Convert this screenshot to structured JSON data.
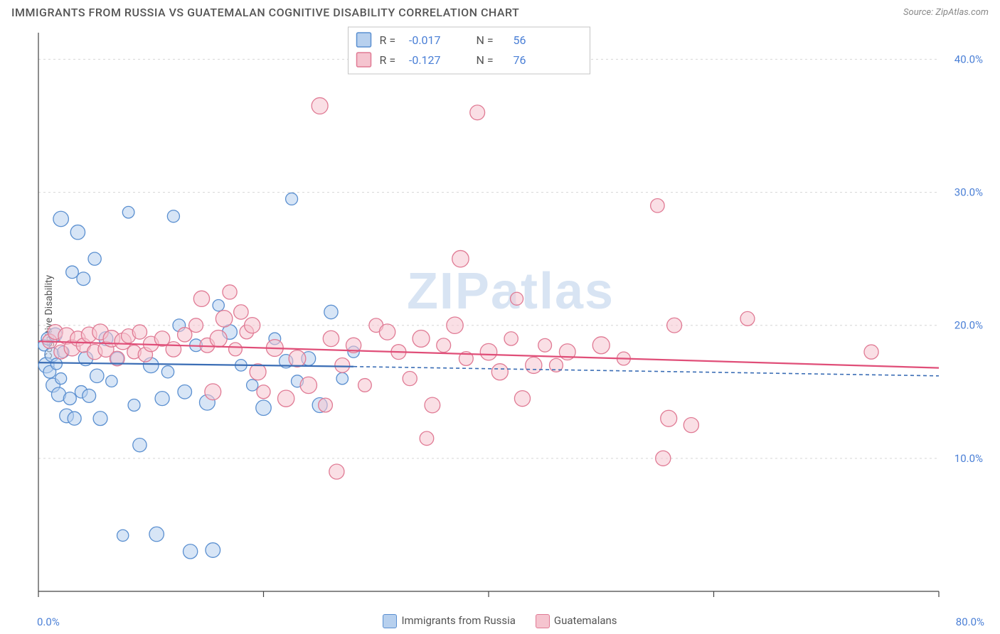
{
  "header": {
    "title": "IMMIGRANTS FROM RUSSIA VS GUATEMALAN COGNITIVE DISABILITY CORRELATION CHART",
    "source": "Source: ZipAtlas.com"
  },
  "chart": {
    "type": "scatter",
    "y_axis_label": "Cognitive Disability",
    "watermark_text": "ZIPatlas",
    "watermark_color": "#d8e4f3",
    "background_color": "#ffffff",
    "grid_color": "#d5d5d5",
    "axis_color": "#444444",
    "y_ticks": [
      10.0,
      20.0,
      30.0,
      40.0
    ],
    "y_tick_labels": [
      "10.0%",
      "20.0%",
      "30.0%",
      "40.0%"
    ],
    "ylim": [
      0,
      42
    ],
    "xlim": [
      0,
      80
    ],
    "x_tick_positions": [
      0,
      20,
      40,
      60,
      80
    ],
    "x_start_label": "0.0%",
    "x_end_label": "80.0%",
    "y_tick_color": "#4a7fd6",
    "y_tick_fontsize": 15,
    "stats_box": {
      "border_color": "#c4c4c4",
      "bg_color": "#ffffff",
      "rows": [
        {
          "swatch_fill": "#b7d0ee",
          "swatch_stroke": "#5a8fd0",
          "r_label": "R =",
          "r_value": "-0.017",
          "n_label": "N =",
          "n_value": "56",
          "value_color": "#4a7fd6"
        },
        {
          "swatch_fill": "#f5c4cf",
          "swatch_stroke": "#e07a94",
          "r_label": "R =",
          "r_value": "-0.127",
          "n_label": "N =",
          "n_value": "76",
          "value_color": "#4a7fd6"
        }
      ]
    },
    "series": [
      {
        "name": "Immigrants from Russia",
        "fill_color": "#b7d0ee",
        "fill_opacity": 0.55,
        "stroke_color": "#5a8fd0",
        "stroke_width": 1.3,
        "marker_radius_base": 8,
        "trend": {
          "x1": 0,
          "y1": 17.2,
          "x2": 28,
          "y2": 16.9,
          "x2_dash": 80,
          "y2_dash": 16.2,
          "color": "#3a6db5",
          "width": 2.2,
          "dash": "5,4"
        },
        "points": [
          [
            0.5,
            18.5
          ],
          [
            0.7,
            17.0
          ],
          [
            0.8,
            19.0
          ],
          [
            1.0,
            16.5
          ],
          [
            1.2,
            17.8
          ],
          [
            1.3,
            15.5
          ],
          [
            1.5,
            19.3
          ],
          [
            1.6,
            17.1
          ],
          [
            1.8,
            14.8
          ],
          [
            2.0,
            16.0
          ],
          [
            2.0,
            28.0
          ],
          [
            2.2,
            18.0
          ],
          [
            2.5,
            13.2
          ],
          [
            2.8,
            14.5
          ],
          [
            3.0,
            24.0
          ],
          [
            3.2,
            13.0
          ],
          [
            3.5,
            27.0
          ],
          [
            3.8,
            15.0
          ],
          [
            4.0,
            23.5
          ],
          [
            4.2,
            17.5
          ],
          [
            4.5,
            14.7
          ],
          [
            5.0,
            25.0
          ],
          [
            5.2,
            16.2
          ],
          [
            5.5,
            13.0
          ],
          [
            6.0,
            19.0
          ],
          [
            6.5,
            15.8
          ],
          [
            7.0,
            17.5
          ],
          [
            7.5,
            4.2
          ],
          [
            8.0,
            28.5
          ],
          [
            8.5,
            14.0
          ],
          [
            9.0,
            11.0
          ],
          [
            10.0,
            17.0
          ],
          [
            10.5,
            4.3
          ],
          [
            11.0,
            14.5
          ],
          [
            11.5,
            16.5
          ],
          [
            12.0,
            28.2
          ],
          [
            13.0,
            15.0
          ],
          [
            13.5,
            3.0
          ],
          [
            14.0,
            18.5
          ],
          [
            15.0,
            14.2
          ],
          [
            15.5,
            3.1
          ],
          [
            16.0,
            21.5
          ],
          [
            17.0,
            19.5
          ],
          [
            18.0,
            17.0
          ],
          [
            19.0,
            15.5
          ],
          [
            20.0,
            13.8
          ],
          [
            21.0,
            19.0
          ],
          [
            22.0,
            17.3
          ],
          [
            22.5,
            29.5
          ],
          [
            23.0,
            15.8
          ],
          [
            24.0,
            17.5
          ],
          [
            25.0,
            14.0
          ],
          [
            26.0,
            21.0
          ],
          [
            27.0,
            16.0
          ],
          [
            28.0,
            18.0
          ],
          [
            12.5,
            20.0
          ]
        ]
      },
      {
        "name": "Guatemalans",
        "fill_color": "#f5c4cf",
        "fill_opacity": 0.55,
        "stroke_color": "#e07a94",
        "stroke_width": 1.3,
        "marker_radius_base": 9,
        "trend": {
          "x1": 0,
          "y1": 18.8,
          "x2": 80,
          "y2": 16.8,
          "color": "#e04e78",
          "width": 2.2
        },
        "points": [
          [
            1.0,
            18.8
          ],
          [
            1.5,
            19.5
          ],
          [
            2.0,
            18.0
          ],
          [
            2.5,
            19.2
          ],
          [
            3.0,
            18.3
          ],
          [
            3.5,
            19.0
          ],
          [
            4.0,
            18.5
          ],
          [
            4.5,
            19.3
          ],
          [
            5.0,
            18.0
          ],
          [
            5.5,
            19.5
          ],
          [
            6.0,
            18.2
          ],
          [
            6.5,
            19.0
          ],
          [
            7.0,
            17.5
          ],
          [
            7.5,
            18.8
          ],
          [
            8.0,
            19.2
          ],
          [
            8.5,
            18.0
          ],
          [
            9.0,
            19.5
          ],
          [
            9.5,
            17.8
          ],
          [
            10.0,
            18.6
          ],
          [
            11.0,
            19.0
          ],
          [
            12.0,
            18.2
          ],
          [
            13.0,
            19.3
          ],
          [
            14.0,
            20.0
          ],
          [
            14.5,
            22.0
          ],
          [
            15.0,
            18.5
          ],
          [
            15.5,
            15.0
          ],
          [
            16.0,
            19.0
          ],
          [
            16.5,
            20.5
          ],
          [
            17.0,
            22.5
          ],
          [
            17.5,
            18.2
          ],
          [
            18.0,
            21.0
          ],
          [
            18.5,
            19.5
          ],
          [
            19.0,
            20.0
          ],
          [
            19.5,
            16.5
          ],
          [
            20.0,
            15.0
          ],
          [
            21.0,
            18.3
          ],
          [
            22.0,
            14.5
          ],
          [
            23.0,
            17.5
          ],
          [
            24.0,
            15.5
          ],
          [
            25.0,
            36.5
          ],
          [
            25.5,
            14.0
          ],
          [
            26.0,
            19.0
          ],
          [
            26.5,
            9.0
          ],
          [
            27.0,
            17.0
          ],
          [
            28.0,
            18.5
          ],
          [
            29.0,
            15.5
          ],
          [
            30.0,
            20.0
          ],
          [
            31.0,
            19.5
          ],
          [
            32.0,
            18.0
          ],
          [
            33.0,
            16.0
          ],
          [
            34.0,
            19.0
          ],
          [
            34.5,
            11.5
          ],
          [
            35.0,
            14.0
          ],
          [
            36.0,
            18.5
          ],
          [
            37.0,
            20.0
          ],
          [
            37.5,
            25.0
          ],
          [
            38.0,
            17.5
          ],
          [
            39.0,
            36.0
          ],
          [
            40.0,
            18.0
          ],
          [
            41.0,
            16.5
          ],
          [
            42.0,
            19.0
          ],
          [
            42.5,
            22.0
          ],
          [
            43.0,
            14.5
          ],
          [
            44.0,
            17.0
          ],
          [
            45.0,
            18.5
          ],
          [
            46.0,
            17.0
          ],
          [
            47.0,
            18.0
          ],
          [
            50.0,
            18.5
          ],
          [
            52.0,
            17.5
          ],
          [
            55.0,
            29.0
          ],
          [
            55.5,
            10.0
          ],
          [
            56.0,
            13.0
          ],
          [
            56.5,
            20.0
          ],
          [
            58.0,
            12.5
          ],
          [
            63.0,
            20.5
          ],
          [
            74.0,
            18.0
          ]
        ]
      }
    ],
    "bottom_legend": [
      {
        "swatch_fill": "#b7d0ee",
        "swatch_stroke": "#5a8fd0",
        "label": "Immigrants from Russia"
      },
      {
        "swatch_fill": "#f5c4cf",
        "swatch_stroke": "#e07a94",
        "label": "Guatemalans"
      }
    ]
  }
}
